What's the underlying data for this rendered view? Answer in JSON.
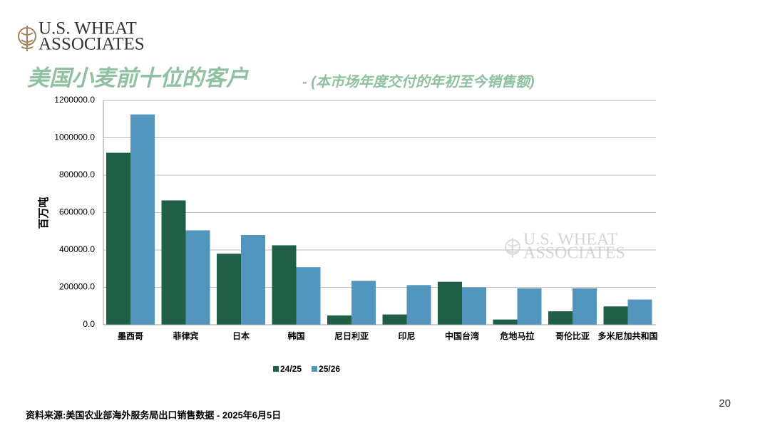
{
  "logo": {
    "line1": "U.S. WHEAT",
    "line2": "ASSOCIATES"
  },
  "watermark": {
    "line1": "U.S. WHEAT",
    "line2": "ASSOCIATES"
  },
  "page_number": "20",
  "source": "资料来源:美国农业部海外服务局出口销售数据  - 2025年6月5日",
  "chart_data": {
    "type": "bar",
    "title": "美国小麦前十位的客户",
    "subtitle": "- (本市场年度交付的年初至今销售额)",
    "y_label": "百万吨",
    "categories": [
      "墨西哥",
      "菲律宾",
      "日本",
      "韩国",
      "尼日利亚",
      "印尼",
      "中国台湾",
      "危地马拉",
      "哥伦比亚",
      "多米尼加共和国"
    ],
    "series": [
      {
        "name": "24/25",
        "color": "#1f5f45",
        "values": [
          920000,
          665000,
          380000,
          425000,
          50000,
          55000,
          230000,
          28000,
          72000,
          98000
        ]
      },
      {
        "name": "25/26",
        "color": "#5296bd",
        "values": [
          1125000,
          505000,
          480000,
          308000,
          235000,
          212000,
          200000,
          195000,
          195000,
          135000
        ]
      }
    ],
    "ylim": [
      0,
      1200000
    ],
    "yticks": [
      {
        "value": 0,
        "label": "0.0"
      },
      {
        "value": 200000,
        "label": "200000.0"
      },
      {
        "value": 400000,
        "label": "400000.0"
      },
      {
        "value": 600000,
        "label": "600000.0"
      },
      {
        "value": 800000,
        "label": "800000.0"
      },
      {
        "value": 1000000,
        "label": "1000000.0"
      },
      {
        "value": 1200000,
        "label": "1200000.0"
      }
    ],
    "grid": true,
    "legend": "bottom"
  }
}
